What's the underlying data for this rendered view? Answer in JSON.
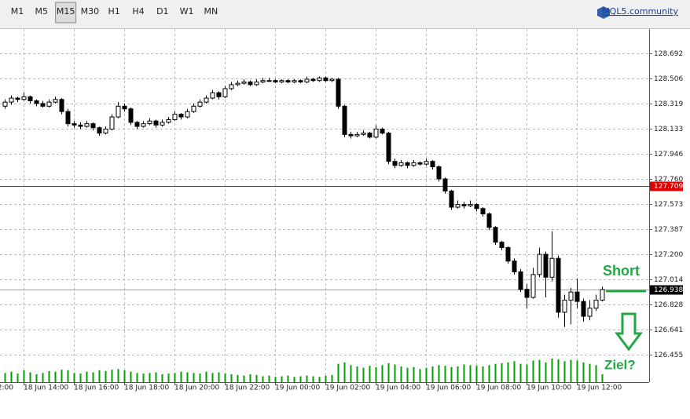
{
  "toolbar": {
    "timeframes": [
      {
        "label": "M1"
      },
      {
        "label": "M5"
      },
      {
        "label": "M15",
        "pressed": true
      },
      {
        "label": "M30"
      },
      {
        "label": "H1"
      },
      {
        "label": "H4"
      },
      {
        "label": "D1"
      },
      {
        "label": "W1"
      },
      {
        "label": "MN"
      }
    ],
    "link": "MQL5.community"
  },
  "chart_data": {
    "type": "candlestick",
    "categories": [
      null,
      null,
      null,
      "18 Jun 14:00",
      null,
      null,
      null,
      null,
      null,
      null,
      null,
      "18 Jun 16:00",
      null,
      null,
      null,
      null,
      null,
      null,
      null,
      "18 Jun 18:00",
      null,
      null,
      null,
      null,
      null,
      null,
      null,
      "18 Jun 20:00",
      null,
      null,
      null,
      null,
      null,
      null,
      null,
      "18 Jun 22:00",
      null,
      null,
      null,
      null,
      null,
      null,
      null,
      "19 Jun 00:00",
      null,
      null,
      null,
      null,
      null,
      null,
      null,
      "19 Jun 02:00",
      null,
      null,
      null,
      null,
      null,
      null,
      null,
      "19 Jun 04:00",
      null,
      null,
      null,
      null,
      null,
      null,
      null,
      "19 Jun 06:00",
      null,
      null,
      null,
      null,
      null,
      null,
      null,
      "19 Jun 08:00",
      null,
      null,
      null,
      null,
      null,
      null,
      null,
      "19 Jun 10:00",
      null,
      null,
      null,
      null,
      null,
      null,
      null,
      "19 Jun 12:00",
      null,
      null,
      null,
      null
    ],
    "xlabel_partial": "2:00",
    "ohlc": [
      [
        128.3,
        128.35,
        128.28,
        128.33
      ],
      [
        128.33,
        128.38,
        128.31,
        128.36
      ],
      [
        128.36,
        128.37,
        128.33,
        128.35
      ],
      [
        128.35,
        128.4,
        128.34,
        128.37
      ],
      [
        128.37,
        128.38,
        128.32,
        128.34
      ],
      [
        128.34,
        128.35,
        128.3,
        128.32
      ],
      [
        128.32,
        128.34,
        128.29,
        128.3
      ],
      [
        128.3,
        128.35,
        128.29,
        128.33
      ],
      [
        128.33,
        128.37,
        128.32,
        128.35
      ],
      [
        128.35,
        128.36,
        128.24,
        128.26
      ],
      [
        128.26,
        128.28,
        128.15,
        128.17
      ],
      [
        128.17,
        128.19,
        128.14,
        128.16
      ],
      [
        128.16,
        128.18,
        128.13,
        128.15
      ],
      [
        128.15,
        128.19,
        128.14,
        128.17
      ],
      [
        128.17,
        128.18,
        128.12,
        128.14
      ],
      [
        128.14,
        128.15,
        128.08,
        128.1
      ],
      [
        128.1,
        128.15,
        128.09,
        128.13
      ],
      [
        128.13,
        128.24,
        128.12,
        128.22
      ],
      [
        128.22,
        128.33,
        128.21,
        128.3
      ],
      [
        128.3,
        128.32,
        128.26,
        128.28
      ],
      [
        128.28,
        128.29,
        128.16,
        128.18
      ],
      [
        128.18,
        128.19,
        128.13,
        128.15
      ],
      [
        128.15,
        128.19,
        128.14,
        128.17
      ],
      [
        128.17,
        128.21,
        128.16,
        128.19
      ],
      [
        128.19,
        128.2,
        128.14,
        128.16
      ],
      [
        128.16,
        128.2,
        128.15,
        128.18
      ],
      [
        128.18,
        128.22,
        128.17,
        128.2
      ],
      [
        128.2,
        128.26,
        128.19,
        128.24
      ],
      [
        128.24,
        128.25,
        128.2,
        128.22
      ],
      [
        128.22,
        128.28,
        128.21,
        128.26
      ],
      [
        128.26,
        128.32,
        128.25,
        128.3
      ],
      [
        128.3,
        128.35,
        128.29,
        128.33
      ],
      [
        128.33,
        128.38,
        128.32,
        128.36
      ],
      [
        128.36,
        128.42,
        128.35,
        128.4
      ],
      [
        128.4,
        128.41,
        128.35,
        128.37
      ],
      [
        128.37,
        128.45,
        128.36,
        128.43
      ],
      [
        128.43,
        128.48,
        128.42,
        128.46
      ],
      [
        128.46,
        128.49,
        128.45,
        128.47
      ],
      [
        128.47,
        128.5,
        128.46,
        128.48
      ],
      [
        128.48,
        128.49,
        128.45,
        128.46
      ],
      [
        128.46,
        128.5,
        128.45,
        128.48
      ],
      [
        128.48,
        128.51,
        128.47,
        128.49
      ],
      [
        128.49,
        128.51,
        128.48,
        128.49
      ],
      [
        128.49,
        128.5,
        128.47,
        128.48
      ],
      [
        128.48,
        128.5,
        128.47,
        128.49
      ],
      [
        128.49,
        128.5,
        128.47,
        128.48
      ],
      [
        128.48,
        128.5,
        128.47,
        128.49
      ],
      [
        128.49,
        128.5,
        128.47,
        128.48
      ],
      [
        128.48,
        128.52,
        128.47,
        128.5
      ],
      [
        128.5,
        128.51,
        128.48,
        128.49
      ],
      [
        128.49,
        128.52,
        128.48,
        128.51
      ],
      [
        128.51,
        128.52,
        128.48,
        128.49
      ],
      [
        128.49,
        128.51,
        128.48,
        128.5
      ],
      [
        128.5,
        128.51,
        128.28,
        128.3
      ],
      [
        128.3,
        128.31,
        128.07,
        128.09
      ],
      [
        128.09,
        128.11,
        128.06,
        128.08
      ],
      [
        128.08,
        128.11,
        128.07,
        128.09
      ],
      [
        128.09,
        128.12,
        128.08,
        128.1
      ],
      [
        128.1,
        128.11,
        128.06,
        128.07
      ],
      [
        128.07,
        128.16,
        128.06,
        128.13
      ],
      [
        128.13,
        128.14,
        128.09,
        128.1
      ],
      [
        128.1,
        128.11,
        127.87,
        127.89
      ],
      [
        127.89,
        127.91,
        127.84,
        127.86
      ],
      [
        127.86,
        127.9,
        127.85,
        127.88
      ],
      [
        127.88,
        127.89,
        127.84,
        127.86
      ],
      [
        127.86,
        127.9,
        127.85,
        127.88
      ],
      [
        127.88,
        127.89,
        127.86,
        127.87
      ],
      [
        127.87,
        127.91,
        127.86,
        127.89
      ],
      [
        127.89,
        127.9,
        127.83,
        127.85
      ],
      [
        127.85,
        127.86,
        127.74,
        127.76
      ],
      [
        127.76,
        127.77,
        127.65,
        127.67
      ],
      [
        127.67,
        127.68,
        127.53,
        127.55
      ],
      [
        127.55,
        127.6,
        127.54,
        127.57
      ],
      [
        127.57,
        127.59,
        127.54,
        127.56
      ],
      [
        127.56,
        127.6,
        127.55,
        127.57
      ],
      [
        127.57,
        127.58,
        127.52,
        127.54
      ],
      [
        127.54,
        127.55,
        127.48,
        127.5
      ],
      [
        127.5,
        127.51,
        127.38,
        127.4
      ],
      [
        127.4,
        127.41,
        127.27,
        127.29
      ],
      [
        127.29,
        127.3,
        127.23,
        127.25
      ],
      [
        127.25,
        127.26,
        127.13,
        127.15
      ],
      [
        127.15,
        127.17,
        127.05,
        127.07
      ],
      [
        127.07,
        127.09,
        126.92,
        126.94
      ],
      [
        126.94,
        126.98,
        126.8,
        126.88
      ],
      [
        126.88,
        127.1,
        126.87,
        127.05
      ],
      [
        127.05,
        127.25,
        127.03,
        127.2
      ],
      [
        127.2,
        127.22,
        126.88,
        127.03
      ],
      [
        127.03,
        127.37,
        127.0,
        127.17
      ],
      [
        127.17,
        127.19,
        126.73,
        126.77
      ],
      [
        126.77,
        126.9,
        126.66,
        126.86
      ],
      [
        126.86,
        126.95,
        126.68,
        126.92
      ],
      [
        126.92,
        127.02,
        126.8,
        126.85
      ],
      [
        126.85,
        126.87,
        126.7,
        126.74
      ],
      [
        126.74,
        126.86,
        126.71,
        126.8
      ],
      [
        126.8,
        126.9,
        126.78,
        126.86
      ],
      [
        126.86,
        126.96,
        126.85,
        126.938
      ]
    ],
    "volumes": [
      700,
      800,
      650,
      900,
      750,
      600,
      700,
      850,
      800,
      950,
      900,
      700,
      650,
      800,
      750,
      900,
      850,
      950,
      1000,
      900,
      800,
      700,
      650,
      700,
      750,
      600,
      650,
      700,
      800,
      750,
      700,
      650,
      800,
      700,
      750,
      650,
      600,
      550,
      500,
      600,
      550,
      450,
      500,
      400,
      450,
      500,
      400,
      450,
      500,
      450,
      400,
      500,
      550,
      1400,
      1500,
      1300,
      1200,
      1100,
      1250,
      1150,
      1300,
      1450,
      1350,
      1200,
      1100,
      1150,
      1000,
      1100,
      1200,
      1300,
      1250,
      1150,
      1200,
      1350,
      1300,
      1250,
      1200,
      1300,
      1400,
      1450,
      1500,
      1600,
      1400,
      1350,
      1650,
      1700,
      1500,
      1800,
      1750,
      1600,
      1700,
      1650,
      1500,
      1400,
      1300,
      600
    ],
    "ylim": [
      126.251,
      128.867
    ],
    "yticks": [
      128.692,
      128.506,
      128.319,
      128.133,
      127.946,
      {
        "value": 127.76,
        "label": "127.760"
      },
      127.573,
      127.387,
      {
        "value": 127.2,
        "label": "127.200"
      },
      127.014,
      126.828,
      126.641,
      126.455
    ],
    "grid": true,
    "hline": {
      "value": 127.709,
      "color": "#e00000"
    },
    "current_price": 126.938,
    "colors": {
      "up_body": "#ffffff",
      "down_body": "#000000",
      "outline": "#000000",
      "volume": "#00a000"
    },
    "annotations": {
      "short": "Short",
      "target": "Ziel?",
      "color": "#22a845"
    }
  }
}
